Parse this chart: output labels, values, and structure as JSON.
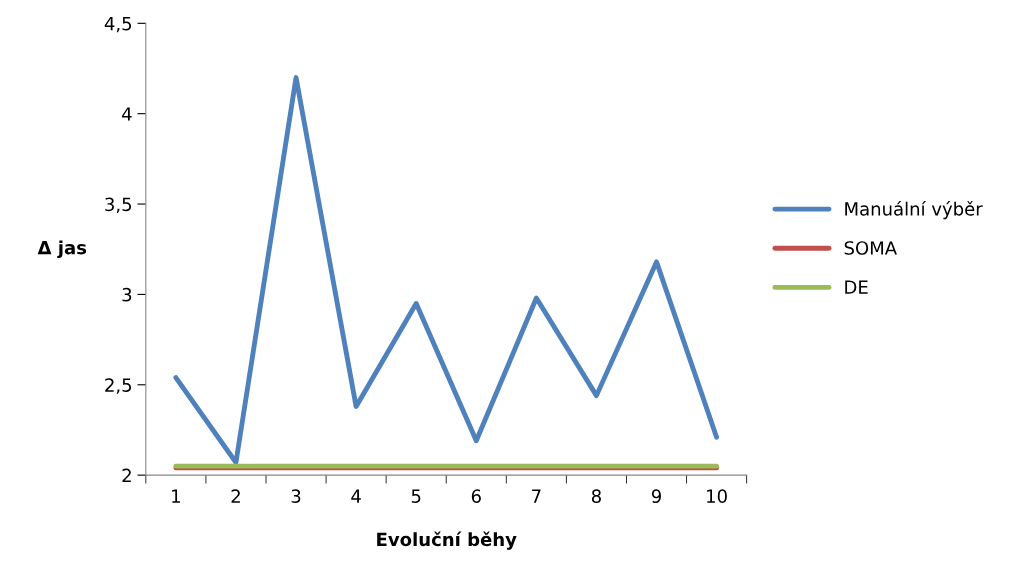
{
  "chart_data": {
    "type": "line",
    "xlabel": "Evoluční běhy",
    "ylabel": "Δ jas",
    "categories": [
      "1",
      "2",
      "3",
      "4",
      "5",
      "6",
      "7",
      "8",
      "9",
      "10"
    ],
    "series": [
      {
        "name": "Manuální výběr",
        "color": "#4f81bd",
        "values": [
          2.54,
          2.07,
          4.2,
          2.38,
          2.95,
          2.19,
          2.98,
          2.44,
          3.18,
          2.21
        ]
      },
      {
        "name": "SOMA",
        "color": "#c0504d",
        "values": [
          2.04,
          2.04,
          2.04,
          2.04,
          2.04,
          2.04,
          2.04,
          2.04,
          2.04,
          2.04
        ]
      },
      {
        "name": "DE",
        "color": "#9bbb59",
        "values": [
          2.05,
          2.05,
          2.05,
          2.05,
          2.05,
          2.05,
          2.05,
          2.05,
          2.05,
          2.05
        ]
      }
    ],
    "ylim": [
      2,
      4.5
    ],
    "yticks": [
      2,
      {
        "value": 2.5,
        "label": "2,5"
      },
      3,
      {
        "value": 3.5,
        "label": "3,5"
      },
      4,
      {
        "value": 4.5,
        "label": "4,5"
      }
    ],
    "grid": false,
    "legend": "right",
    "marker": "none",
    "line_style": "solid"
  }
}
